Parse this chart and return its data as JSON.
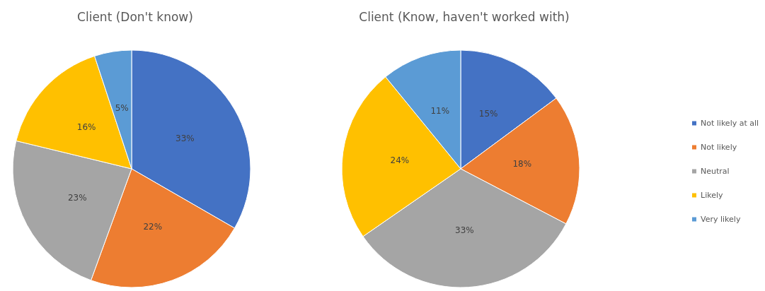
{
  "chart_data": [
    {
      "type": "pie",
      "title": "Client (Don't know)",
      "categories": [
        null,
        null,
        null,
        null,
        null
      ],
      "values": [
        33,
        22,
        23,
        16,
        5
      ],
      "value_labels": [
        "33%",
        "22%",
        "23%",
        "16%",
        "5%"
      ],
      "colors": [
        "#4472c4",
        "#ed7d31",
        "#a5a5a5",
        "#ffc000",
        "#5b9bd5"
      ],
      "legend": false
    },
    {
      "type": "pie",
      "title": "Client (Know, haven't worked with)",
      "categories": [
        "Not likely at all",
        "Not likely",
        "Neutral",
        "Likely",
        "Very likely"
      ],
      "values": [
        15,
        18,
        33,
        24,
        11
      ],
      "value_labels": [
        "15%",
        "18%",
        "33%",
        "24%",
        "11%"
      ],
      "colors": [
        "#4472c4",
        "#ed7d31",
        "#a5a5a5",
        "#ffc000",
        "#5b9bd5"
      ],
      "legend": "right"
    }
  ]
}
